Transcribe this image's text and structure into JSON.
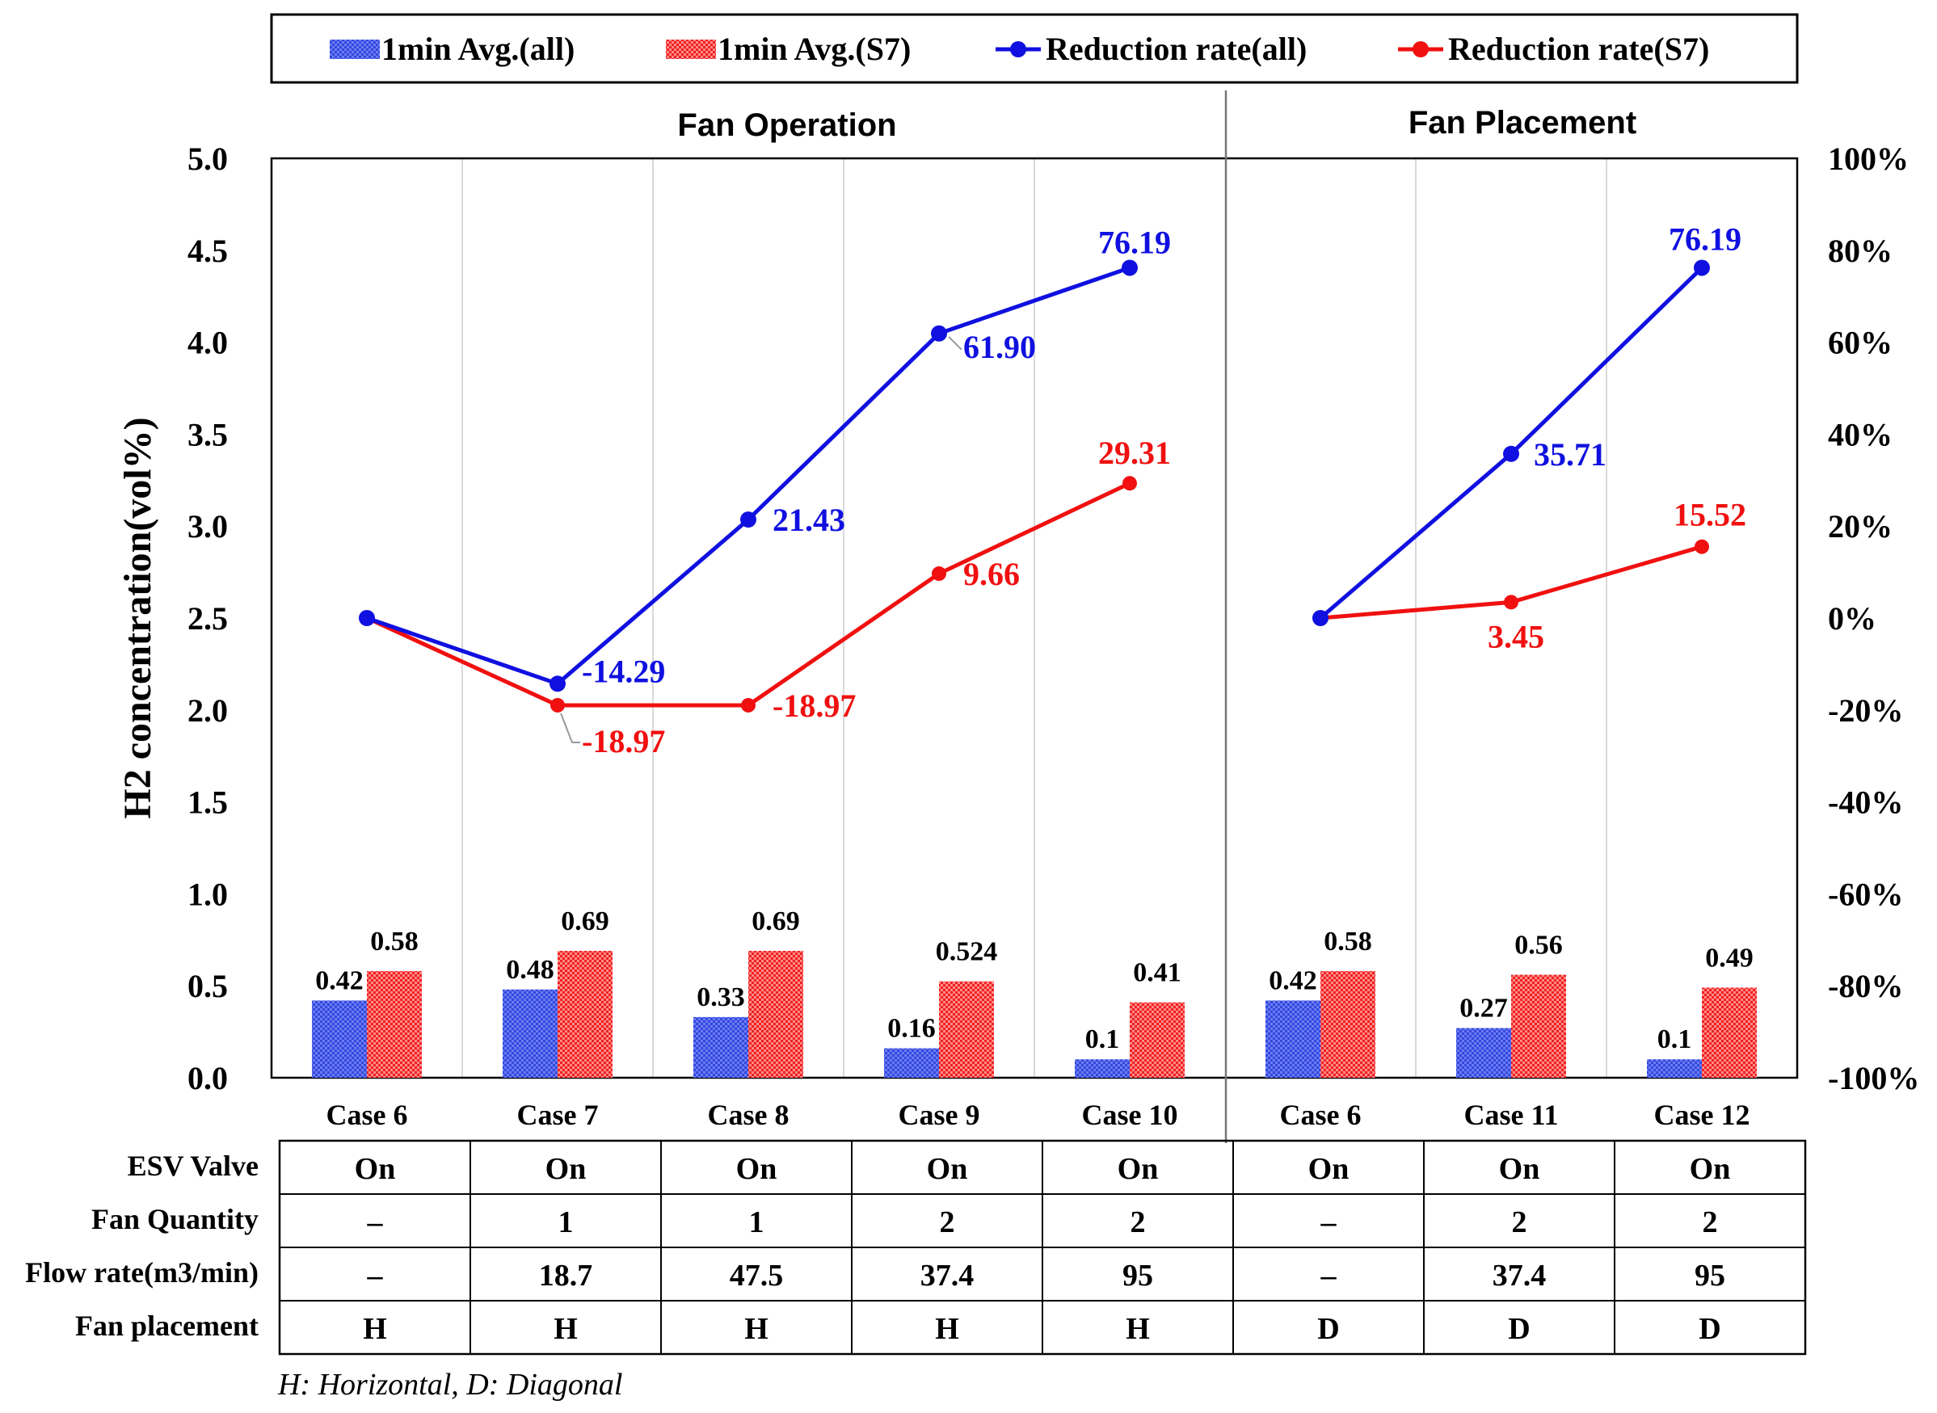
{
  "chart_data": {
    "type": "bar+line",
    "y_left_label": "H2 concentration(vol%)",
    "y_left_ticks": [
      "0.0",
      "0.5",
      "1.0",
      "1.5",
      "2.0",
      "2.5",
      "3.0",
      "3.5",
      "4.0",
      "4.5",
      "5.0"
    ],
    "y_left_range": [
      0,
      5
    ],
    "y_right_ticks": [
      "-100%",
      "-80%",
      "-60%",
      "-40%",
      "-20%",
      "0%",
      "20%",
      "40%",
      "60%",
      "80%",
      "100%"
    ],
    "y_right_range": [
      -100,
      100
    ],
    "groups": [
      {
        "title": "Fan Operation",
        "cases": [
          "Case 6",
          "Case 7",
          "Case 8",
          "Case 9",
          "Case 10"
        ]
      },
      {
        "title": "Fan Placement",
        "cases": [
          "Case 6",
          "Case 11",
          "Case 12"
        ]
      }
    ],
    "categories": [
      "Case 6",
      "Case 7",
      "Case 8",
      "Case 9",
      "Case 10",
      "Case 6",
      "Case 11",
      "Case 12"
    ],
    "series": [
      {
        "name": "1min Avg.(all)",
        "kind": "bar",
        "color": "#2a3fd9",
        "values": [
          0.42,
          0.48,
          0.33,
          0.16,
          0.1,
          0.42,
          0.27,
          0.1
        ],
        "labels": [
          "0.42",
          "0.48",
          "0.33",
          "0.16",
          "0.1",
          "0.42",
          "0.27",
          "0.1"
        ]
      },
      {
        "name": "1min Avg.(S7)",
        "kind": "bar",
        "color": "#f01a1a",
        "values": [
          0.58,
          0.69,
          0.69,
          0.524,
          0.41,
          0.58,
          0.56,
          0.49
        ],
        "labels": [
          "0.58",
          "0.69",
          "0.69",
          "0.524",
          "0.41",
          "0.58",
          "0.56",
          "0.49"
        ]
      },
      {
        "name": "Reduction rate(all)",
        "kind": "line",
        "color": "#1010e0",
        "segments": [
          [
            0,
            1,
            2,
            3,
            4
          ],
          [
            5,
            6,
            7
          ]
        ],
        "values": [
          0,
          -14.29,
          21.43,
          61.9,
          76.19,
          0,
          35.71,
          76.19
        ],
        "labels": [
          "",
          "-14.29",
          "21.43",
          "61.90",
          "76.19",
          "",
          "35.71",
          "76.19"
        ]
      },
      {
        "name": "Reduction rate(S7)",
        "kind": "line",
        "color": "#f01010",
        "segments": [
          [
            0,
            1,
            2,
            3,
            4
          ],
          [
            5,
            6,
            7
          ]
        ],
        "values": [
          0,
          -18.97,
          -18.97,
          9.66,
          29.31,
          0,
          3.45,
          15.52
        ],
        "labels": [
          "",
          "-18.97",
          "-18.97",
          "9.66",
          "29.31",
          "",
          "3.45",
          "15.52"
        ]
      }
    ]
  },
  "table": {
    "rows": [
      {
        "header": "ESV Valve",
        "cells": [
          "On",
          "On",
          "On",
          "On",
          "On",
          "On",
          "On",
          "On"
        ]
      },
      {
        "header": "Fan Quantity",
        "cells": [
          "–",
          "1",
          "1",
          "2",
          "2",
          "–",
          "2",
          "2"
        ]
      },
      {
        "header": "Flow rate(m3/min)",
        "cells": [
          "–",
          "18.7",
          "47.5",
          "37.4",
          "95",
          "–",
          "37.4",
          "95"
        ]
      },
      {
        "header": "Fan placement",
        "cells": [
          "H",
          "H",
          "H",
          "H",
          "H",
          "D",
          "D",
          "D"
        ]
      }
    ]
  },
  "footnote": "H: Horizontal, D: Diagonal"
}
